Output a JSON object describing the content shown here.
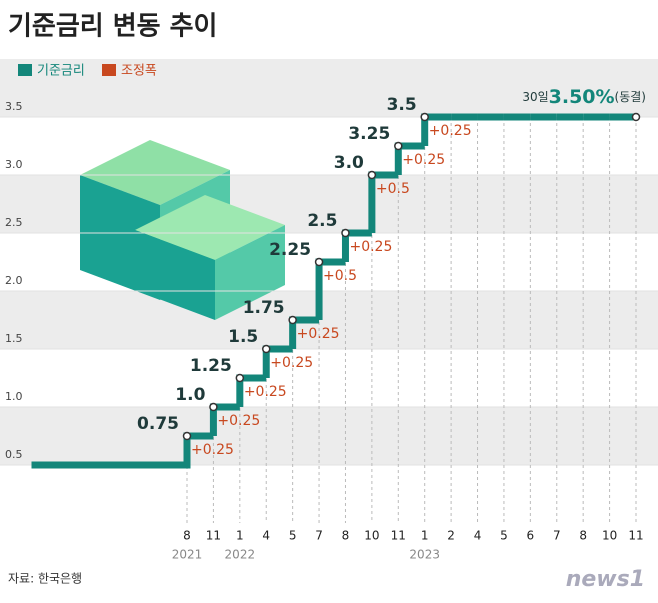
{
  "chart_data": {
    "type": "step",
    "title": "기준금리 변동 추이",
    "legend": [
      "기준금리",
      "조정폭"
    ],
    "categories": [
      "8",
      "11",
      "1",
      "4",
      "5",
      "7",
      "8",
      "10",
      "11",
      "1",
      "2",
      "4",
      "5",
      "6",
      "7",
      "8",
      "10",
      "11"
    ],
    "years": [
      "2021",
      "2022",
      "2023"
    ],
    "start_value": 0.5,
    "series": [
      {
        "name": "기준금리",
        "color": "#13867a",
        "values": [
          0.75,
          1,
          1.25,
          1.5,
          1.75,
          2.25,
          2.5,
          3,
          3.25,
          3.5,
          3.5,
          3.5,
          3.5,
          3.5,
          3.5,
          3.5,
          3.5,
          3.5
        ],
        "value_labels": [
          "0.75",
          "1.0",
          "1.25",
          "1.5",
          "1.75",
          "2.25",
          "2.5",
          "3.0",
          "3.25",
          "3.5",
          null,
          null,
          null,
          null,
          null,
          null,
          null,
          null
        ]
      }
    ],
    "changes": {
      "name": "조정폭",
      "color": "#c8481f",
      "values": [
        0.25,
        0.25,
        0.25,
        0.25,
        0.25,
        0.5,
        0.25,
        0.5,
        0.25,
        0.25,
        null,
        null,
        null,
        null,
        null,
        null,
        null,
        null
      ],
      "value_labels": [
        "+0.25",
        "+0.25",
        "+0.25",
        "+0.25",
        "+0.25",
        "+0.5",
        "+0.25",
        "+0.5",
        "+0.25",
        "+0.25",
        null,
        null,
        null,
        null,
        null,
        null,
        null,
        null
      ]
    },
    "annotation": {
      "day": "30일",
      "rate": "3.50%",
      "note": "(동결)"
    },
    "ylim": [
      0,
      4
    ],
    "yticks": [
      0.5,
      {
        "value": 1,
        "label": "1.0"
      },
      1.5,
      {
        "value": 2,
        "label": "2.0"
      },
      2.5,
      {
        "value": 3,
        "label": "3.0"
      },
      3.5
    ],
    "grid": true,
    "source": "자료: 한국은행",
    "brand": "news1"
  }
}
